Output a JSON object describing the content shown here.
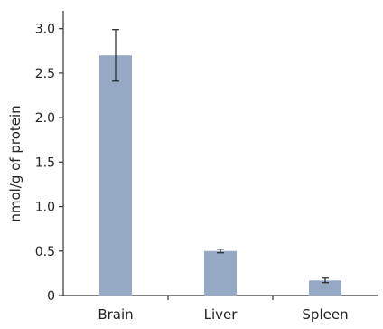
{
  "chart_data": {
    "type": "bar",
    "title": "",
    "xlabel": "",
    "ylabel": "nmol/g of protein",
    "categories": [
      "Brain",
      "Liver",
      "Spleen"
    ],
    "series": [
      {
        "values": [
          2.7,
          0.5,
          0.17
        ],
        "error": [
          0.29,
          0.02,
          0.025
        ]
      }
    ],
    "ylim": [
      0,
      3.2
    ],
    "yticks": [
      0,
      0.5,
      1.0,
      1.5,
      2.0,
      2.5,
      3.0
    ],
    "ytick_labels": [
      "0",
      "0.5",
      "1.0",
      "1.5",
      "2.0",
      "2.5",
      "3.0"
    ],
    "grid": false,
    "colors": {
      "bar": "#95a9c4",
      "axis": "#333333"
    }
  }
}
